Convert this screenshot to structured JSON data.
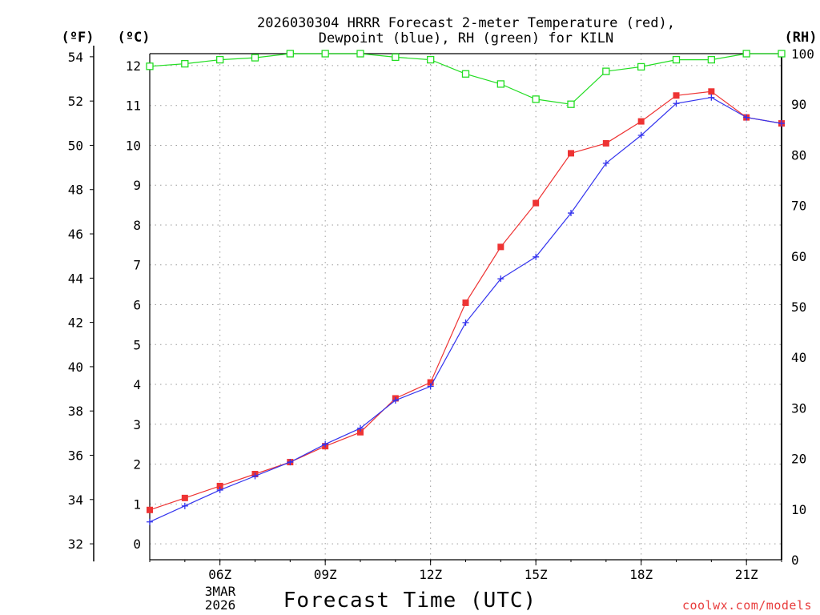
{
  "chart_data": {
    "type": "line",
    "title": [
      "2026030304 HRRR Forecast 2-meter Temperature (red),",
      "Dewpoint (blue), RH (green) for KILN"
    ],
    "xlabel": "Forecast Time (UTC)",
    "date_label": [
      "3MAR",
      "2026"
    ],
    "credit": "coolwx.com/models",
    "left_outer_axis": {
      "unit_label": "(ºF)",
      "ticks": [
        32,
        34,
        36,
        38,
        40,
        42,
        44,
        46,
        48,
        50,
        52,
        54
      ],
      "range": [
        32,
        54.5
      ]
    },
    "left_inner_axis": {
      "unit_label": "(ºC)",
      "ticks": [
        0,
        1,
        2,
        3,
        4,
        5,
        6,
        7,
        8,
        9,
        10,
        11,
        12
      ],
      "range": [
        -0.4,
        12.3
      ]
    },
    "right_axis": {
      "unit_label": "(RH)",
      "ticks": [
        0,
        10,
        20,
        30,
        40,
        50,
        60,
        70,
        80,
        90,
        100
      ],
      "range": [
        0,
        100
      ]
    },
    "x_hours": [
      4,
      5,
      6,
      7,
      8,
      9,
      10,
      11,
      12,
      13,
      14,
      15,
      16,
      17,
      18,
      19,
      20,
      21,
      22
    ],
    "x_range": [
      4,
      22
    ],
    "x_ticks": [
      {
        "hour": 6,
        "label": "06Z"
      },
      {
        "hour": 9,
        "label": "09Z"
      },
      {
        "hour": 12,
        "label": "12Z"
      },
      {
        "hour": 15,
        "label": "15Z"
      },
      {
        "hour": 18,
        "label": "18Z"
      },
      {
        "hour": 21,
        "label": "21Z"
      }
    ],
    "series": [
      {
        "name": "2-meter Temperature",
        "axis": "celsius",
        "color": "#ee3333",
        "marker": "filled-square",
        "values": [
          0.85,
          1.15,
          1.45,
          1.75,
          2.05,
          2.45,
          2.8,
          3.65,
          4.05,
          6.05,
          7.45,
          8.55,
          9.8,
          10.05,
          10.6,
          11.25,
          11.35,
          10.7,
          10.55
        ]
      },
      {
        "name": "Dewpoint",
        "axis": "celsius",
        "color": "#3333ee",
        "marker": "plus",
        "values": [
          0.55,
          0.95,
          1.35,
          1.7,
          2.05,
          2.5,
          2.9,
          3.6,
          3.95,
          5.55,
          6.65,
          7.2,
          8.3,
          9.55,
          10.25,
          11.05,
          11.2,
          10.7,
          10.55
        ]
      },
      {
        "name": "Relative Humidity",
        "axis": "rh",
        "color": "#22dd22",
        "marker": "open-square",
        "values": [
          97.5,
          98,
          98.8,
          99.2,
          100,
          100,
          100,
          99.3,
          98.8,
          96,
          94,
          91,
          90,
          96.5,
          97.4,
          98.8,
          98.8,
          100,
          100
        ]
      }
    ],
    "grid": true
  }
}
